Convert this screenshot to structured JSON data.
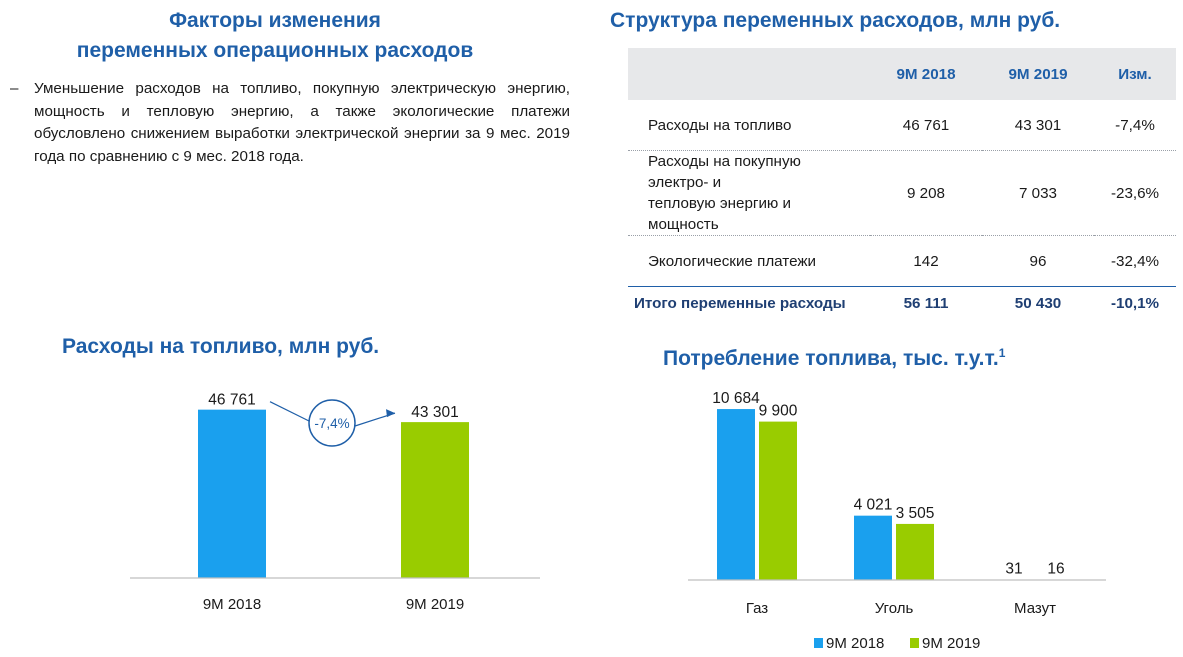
{
  "left_section": {
    "title_line1": "Факторы изменения",
    "title_line2": "переменных операционных расходов",
    "bullet_dash": "–",
    "bullet_text": "Уменьшение расходов на топливо, покупную электрическую энергию, мощность и тепловую энергию, а также экологические платежи обусловлено снижением выработки электрической энергии за 9 мес. 2019 года по сравнению с 9 мес. 2018 года."
  },
  "table": {
    "title": "Структура переменных расходов, млн руб.",
    "headers": [
      "",
      "9M 2018",
      "9M 2019",
      "Изм."
    ],
    "rows": [
      {
        "label_line1": "Расходы на топливо",
        "label_line2": "",
        "v2018": "46 761",
        "v2019": "43 301",
        "change": "-7,4%"
      },
      {
        "label_line1": "Расходы на покупную электро- и",
        "label_line2": "тепловую энергию и мощность",
        "v2018": "9 208",
        "v2019": "7 033",
        "change": "-23,6%"
      },
      {
        "label_line1": "Экологические платежи",
        "label_line2": "",
        "v2018": "142",
        "v2019": "96",
        "change": "-32,4%"
      }
    ],
    "total": {
      "label": "Итого переменные расходы",
      "v2018": "56 111",
      "v2019": "50 430",
      "change": "-10,1%"
    }
  },
  "colors": {
    "accent": "#1f5fa8",
    "blue_bar": "#1aa0ee",
    "green_bar": "#99cc00",
    "header_bg": "#e7e8ea"
  },
  "chart_data": [
    {
      "type": "bar",
      "title": "Расходы на топливо, млн руб.",
      "categories": [
        "9M 2018",
        "9M 2019"
      ],
      "values": [
        46761,
        43301
      ],
      "value_labels": [
        "46 761",
        "43 301"
      ],
      "annotation": "-7,4%",
      "ylim": [
        0,
        50000
      ]
    },
    {
      "type": "bar",
      "title": "Потребление топлива, тыс. т.у.т.",
      "title_sup": "1",
      "categories": [
        "Газ",
        "Уголь",
        "Мазут"
      ],
      "series": [
        {
          "name": "9M 2018",
          "values": [
            10684,
            4021,
            31
          ],
          "labels": [
            "10 684",
            "4 021",
            "31"
          ]
        },
        {
          "name": "9M 2019",
          "values": [
            9900,
            3505,
            16
          ],
          "labels": [
            "9 900",
            "3 505",
            "16"
          ]
        }
      ],
      "legend": "bottom",
      "ylim": [
        0,
        11500
      ]
    }
  ]
}
